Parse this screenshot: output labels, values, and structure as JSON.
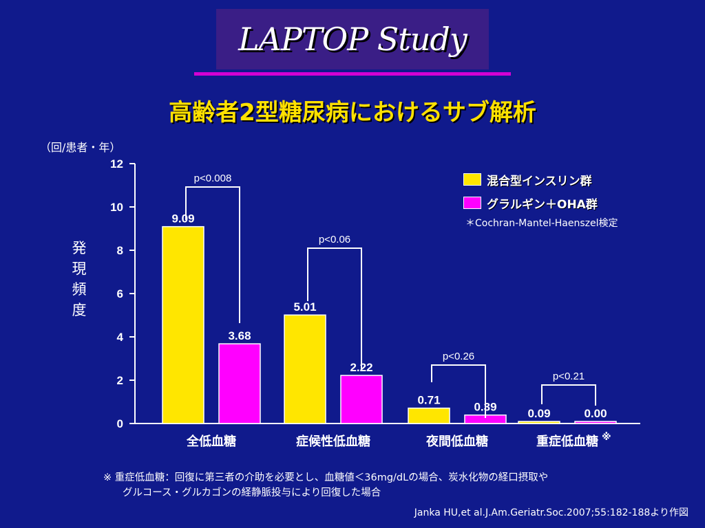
{
  "header": {
    "title": "LAPTOP Study",
    "subtitle": "高齢者2型糖尿病におけるサブ解析"
  },
  "colors": {
    "background": "#101a8c",
    "series_yellow": "#ffe600",
    "series_magenta": "#ff00ff",
    "accent_line": "#d400d4"
  },
  "legend": {
    "note": "＊Cochran-Mantel-Haenszel検定"
  },
  "footnote": {
    "line1": "※ 重症低血糖：回復に第三者の介助を必要とし、血糖値＜36mg/dLの場合、炭水化物の経口摂取や",
    "line2": "グルコース・グルカゴンの経静脈投与により回復した場合"
  },
  "source": "Janka HU,et al.J.Am.Geriatr.Soc.2007;55:182-188より作図",
  "chart_data": {
    "type": "bar",
    "title": "",
    "ylabel": "発現頻度",
    "unit_label": "（回/患者・年）",
    "ylim": [
      0,
      12
    ],
    "yticks": [
      0,
      2,
      4,
      6,
      8,
      10,
      12
    ],
    "categories": [
      "全低血糖",
      "症候性低血糖",
      "夜間低血糖",
      "重症低血糖"
    ],
    "category_marks": [
      "",
      "",
      "",
      "※"
    ],
    "series": [
      {
        "name": "混合型インスリン群",
        "color": "#ffe600",
        "values": [
          9.09,
          5.01,
          0.71,
          0.09
        ],
        "labels": [
          "9.09",
          "5.01",
          "0.71",
          "0.09"
        ]
      },
      {
        "name": "グラルギン＋OHA群",
        "color": "#ff00ff",
        "values": [
          3.68,
          2.22,
          0.39,
          0.0
        ],
        "labels": [
          "3.68",
          "2.22",
          "0.39",
          "0.00"
        ]
      }
    ],
    "pvalues": [
      "p<0.008",
      "p<0.06",
      "p<0.26",
      "p<0.21"
    ],
    "legend_position": "top-right",
    "grid": false
  }
}
